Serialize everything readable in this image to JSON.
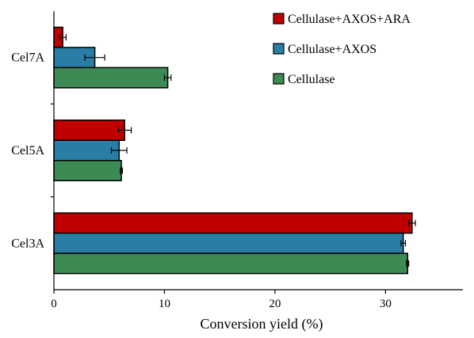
{
  "chart_data": {
    "type": "bar",
    "orientation": "horizontal",
    "categories": [
      "Cel7A",
      "Cel5A",
      "Cel3A"
    ],
    "series": [
      {
        "name": "Cellulase+AXOS+ARA",
        "color": "#c00000",
        "values": [
          0.8,
          6.4,
          32.4
        ],
        "errors": [
          0.3,
          0.6,
          0.3
        ]
      },
      {
        "name": "Cellulase+AXOS",
        "color": "#2a7ea6",
        "values": [
          3.7,
          5.9,
          31.6
        ],
        "errors": [
          0.9,
          0.7,
          0.2
        ]
      },
      {
        "name": "Cellulase",
        "color": "#3e8a55",
        "values": [
          10.3,
          6.1,
          32.0
        ],
        "errors": [
          0.3,
          0.1,
          0.1
        ]
      }
    ],
    "xlabel": "Conversion yield (%)",
    "ylabel": "",
    "xlim": [
      0,
      37
    ],
    "xticks": [
      0,
      10,
      20,
      30
    ],
    "legend_position": "top-right",
    "grid": false
  }
}
